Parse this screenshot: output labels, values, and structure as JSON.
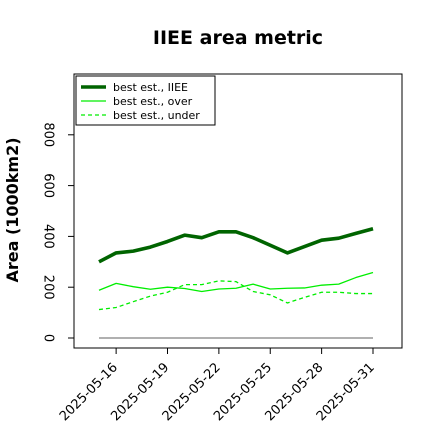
{
  "chart_data": {
    "type": "line",
    "title": "IIEE area metric",
    "ylabel": "Area (1000km2)",
    "xlabel": "",
    "x": [
      "2025-05-15",
      "2025-05-16",
      "2025-05-17",
      "2025-05-18",
      "2025-05-19",
      "2025-05-20",
      "2025-05-21",
      "2025-05-22",
      "2025-05-23",
      "2025-05-24",
      "2025-05-25",
      "2025-05-26",
      "2025-05-27",
      "2025-05-28",
      "2025-05-29",
      "2025-05-30",
      "2025-05-31"
    ],
    "xtick_labels": [
      "2025-05-16",
      "2025-05-19",
      "2025-05-22",
      "2025-05-25",
      "2025-05-28",
      "2025-05-31"
    ],
    "yticks": [
      0,
      200,
      400,
      600,
      800
    ],
    "ylim": [
      -25,
      1045
    ],
    "grid": false,
    "legend_position": "top-left",
    "series": [
      {
        "name": "best est., IIEE",
        "color": "#006400",
        "style": "solid-thick",
        "values": [
          300,
          335,
          342,
          358,
          380,
          405,
          395,
          418,
          418,
          395,
          365,
          335,
          360,
          385,
          393,
          412,
          430
        ]
      },
      {
        "name": "best est., over",
        "color": "#00ee00",
        "style": "solid",
        "values": [
          188,
          215,
          202,
          192,
          200,
          195,
          183,
          193,
          196,
          212,
          193,
          196,
          197,
          208,
          212,
          238,
          258
        ]
      },
      {
        "name": "best est., under",
        "color": "#00ee00",
        "style": "dashed",
        "values": [
          112,
          120,
          143,
          165,
          180,
          210,
          210,
          225,
          222,
          183,
          170,
          138,
          160,
          180,
          180,
          175,
          175
        ]
      }
    ],
    "baseline": {
      "value": 0,
      "color": "#808080"
    }
  }
}
